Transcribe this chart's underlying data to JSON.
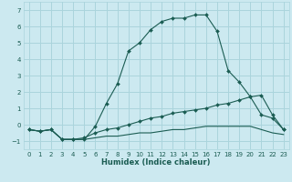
{
  "xlabel": "Humidex (Indice chaleur)",
  "x": [
    0,
    1,
    2,
    3,
    4,
    5,
    6,
    7,
    8,
    9,
    10,
    11,
    12,
    13,
    14,
    15,
    16,
    17,
    18,
    19,
    20,
    21,
    22,
    23
  ],
  "line1_y": [
    -0.3,
    -0.4,
    -0.3,
    -0.9,
    -0.9,
    -0.9,
    -0.1,
    1.3,
    2.5,
    4.5,
    5.0,
    5.8,
    6.3,
    6.5,
    6.5,
    6.7,
    6.7,
    5.7,
    3.3,
    2.6,
    1.7,
    0.6,
    0.4,
    -0.3
  ],
  "line2_y": [
    -0.3,
    -0.4,
    -0.3,
    -0.9,
    -0.9,
    -0.8,
    -0.5,
    -0.3,
    -0.2,
    0.0,
    0.2,
    0.4,
    0.5,
    0.7,
    0.8,
    0.9,
    1.0,
    1.2,
    1.3,
    1.5,
    1.7,
    1.8,
    0.6,
    -0.3
  ],
  "line3_y": [
    -0.3,
    -0.4,
    -0.3,
    -0.9,
    -0.9,
    -0.9,
    -0.8,
    -0.7,
    -0.7,
    -0.6,
    -0.5,
    -0.5,
    -0.4,
    -0.3,
    -0.3,
    -0.2,
    -0.1,
    -0.1,
    -0.1,
    -0.1,
    -0.1,
    -0.3,
    -0.5,
    -0.6
  ],
  "bg_color": "#cce9f0",
  "line_color": "#1a5c52",
  "grid_color": "#aad4dc",
  "ylim": [
    -1.5,
    7.5
  ],
  "xlim": [
    -0.5,
    23.5
  ],
  "yticks": [
    -1,
    0,
    1,
    2,
    3,
    4,
    5,
    6,
    7
  ],
  "xticks": [
    0,
    1,
    2,
    3,
    4,
    5,
    6,
    7,
    8,
    9,
    10,
    11,
    12,
    13,
    14,
    15,
    16,
    17,
    18,
    19,
    20,
    21,
    22,
    23
  ],
  "tick_fontsize": 5.0,
  "xlabel_fontsize": 6.0
}
